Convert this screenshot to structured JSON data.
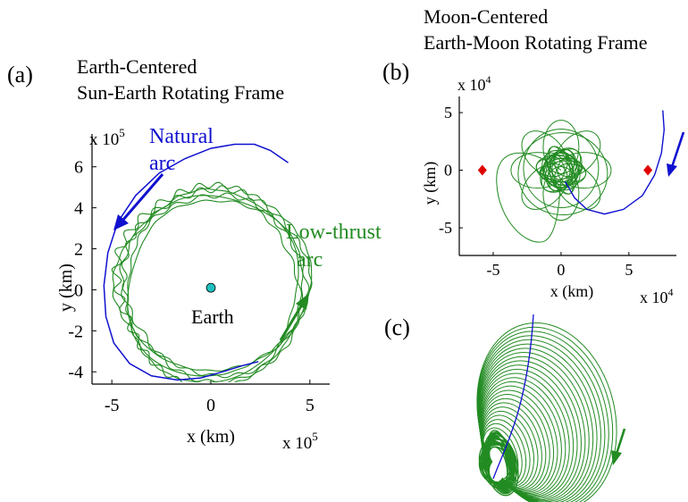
{
  "chart_data": [
    {
      "type": "line",
      "panel_label": "(a)",
      "title": [
        "Earth-Centered",
        "Sun-Earth Rotating Frame"
      ],
      "xlabel": "x (km)",
      "ylabel": "y (km)",
      "x_multiplier": "x 10",
      "x_multiplier_exp": "5",
      "y_multiplier": "x 10",
      "y_multiplier_exp": "5",
      "xlim": [
        -6,
        6
      ],
      "ylim": [
        -4.6,
        7.6
      ],
      "xticks": [
        -5,
        0,
        5
      ],
      "yticks": [
        -4,
        -2,
        0,
        2,
        4,
        6
      ],
      "grid": false,
      "annotations": [
        {
          "text": [
            "Natural",
            "arc"
          ],
          "color": "#1010d0"
        },
        {
          "text": [
            "Low-thrust",
            "arc"
          ],
          "color": "#228b22"
        },
        {
          "text": [
            "Earth"
          ],
          "color": "#000000"
        }
      ],
      "colors": {
        "natural": "#1010d0",
        "low_thrust": "#228b22",
        "earth": "#20c0c0"
      },
      "series": [
        {
          "key": "natural",
          "x": [
            3.9,
            3.0,
            2.2,
            1.2,
            0.0,
            -1.3,
            -2.6,
            -3.8,
            -4.7,
            -5.2,
            -5.4,
            -5.3,
            -4.9,
            -4.1,
            -3.0,
            -1.7,
            -0.5,
            0.6,
            1.6,
            2.4
          ],
          "y": [
            6.2,
            6.8,
            7.1,
            7.1,
            6.9,
            6.4,
            5.7,
            4.6,
            3.3,
            1.8,
            0.2,
            -1.3,
            -2.6,
            -3.6,
            -4.2,
            -4.4,
            -4.3,
            -4.0,
            -3.7,
            -3.5
          ]
        },
        {
          "key": "low_thrust_ref",
          "center": [
            0.1,
            0.2
          ],
          "radius_x": [
            3.5,
            4.3
          ],
          "radius_y": [
            3.7,
            4.0
          ]
        }
      ],
      "earth": {
        "x": 0,
        "y": 0.1
      }
    },
    {
      "type": "line",
      "panel_label": "(b)",
      "title": [
        "Moon-Centered",
        "Earth-Moon Rotating Frame"
      ],
      "xlabel": "x (km)",
      "ylabel": "y (km)",
      "x_multiplier": "x 10",
      "x_multiplier_exp": "4",
      "y_multiplier": "x 10",
      "y_multiplier_exp": "4",
      "xlim": [
        -7.5,
        8.5
      ],
      "ylim": [
        -7.4,
        6.4
      ],
      "xticks": [
        -5,
        0,
        5
      ],
      "yticks": [
        -5,
        0,
        5
      ],
      "grid": false,
      "markers": [
        {
          "x": -5.8,
          "y": 0
        },
        {
          "x": 6.4,
          "y": 0
        }
      ],
      "natural_arc": {
        "x": [
          7.5,
          7.6,
          7.4,
          6.9,
          6.0,
          4.6,
          3.2,
          1.9,
          1.0,
          0.3
        ],
        "y": [
          5.2,
          3.5,
          1.5,
          -0.4,
          -2.2,
          -3.4,
          -3.8,
          -3.4,
          -2.4,
          -1.0
        ]
      }
    },
    {
      "type": "line",
      "panel_label": "(c)"
    }
  ]
}
